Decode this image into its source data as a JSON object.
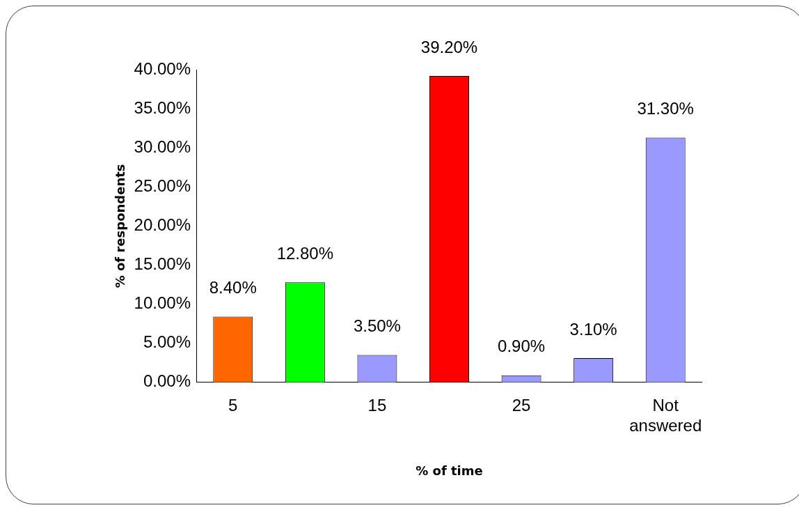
{
  "chart_data": {
    "type": "bar",
    "xlabel": "% of time",
    "ylabel": "% of respondents",
    "categories": [
      "5",
      null,
      "15",
      null,
      "25",
      null,
      "Not answered"
    ],
    "values": [
      8.4,
      12.8,
      3.5,
      39.2,
      0.9,
      3.1,
      31.3
    ],
    "colors": [
      "#ff6600",
      "#00ff00",
      "#9999ff",
      "#ff0000",
      "#9999ff",
      "#9999ff",
      "#9999ff"
    ],
    "value_labels": [
      "8.40%",
      "12.80%",
      "3.50%",
      "39.20%",
      "0.90%",
      "3.10%",
      "31.30%"
    ],
    "ylim": [
      0,
      40
    ],
    "yticks": [
      {
        "value": 0,
        "label": "0.00%"
      },
      {
        "value": 5,
        "label": "5.00%"
      },
      {
        "value": 10,
        "label": "10.00%"
      },
      {
        "value": 15,
        "label": "15.00%"
      },
      {
        "value": 20,
        "label": "20.00%"
      },
      {
        "value": 25,
        "label": "25.00%"
      },
      {
        "value": 30,
        "label": "30.00%"
      },
      {
        "value": 35,
        "label": "35.00%"
      },
      {
        "value": 40,
        "label": "40.00%"
      }
    ],
    "grid": false,
    "legend": false
  }
}
